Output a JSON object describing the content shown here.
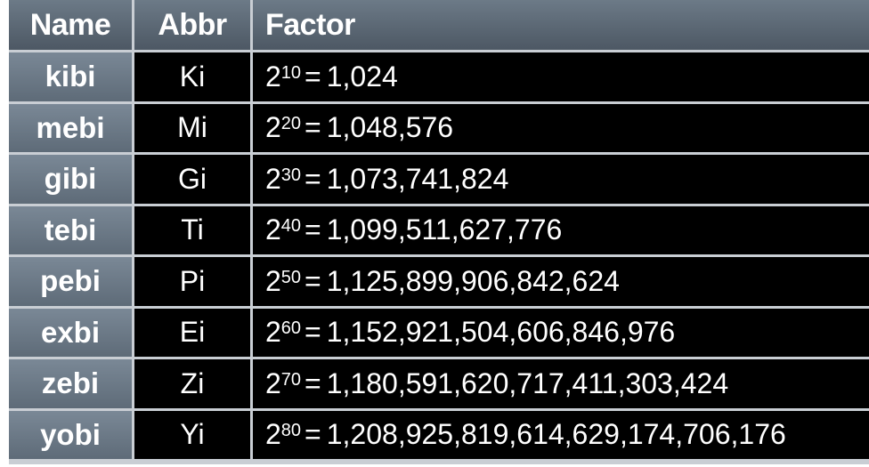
{
  "headers": {
    "name": "Name",
    "abbr": "Abbr",
    "factor": "Factor"
  },
  "rows": [
    {
      "name": "kibi",
      "abbr": "Ki",
      "base": "2",
      "exponent": "10",
      "value": "1,024"
    },
    {
      "name": "mebi",
      "abbr": "Mi",
      "base": "2",
      "exponent": "20",
      "value": "1,048,576"
    },
    {
      "name": "gibi",
      "abbr": "Gi",
      "base": "2",
      "exponent": "30",
      "value": "1,073,741,824"
    },
    {
      "name": "tebi",
      "abbr": "Ti",
      "base": "2",
      "exponent": "40",
      "value": "1,099,511,627,776"
    },
    {
      "name": "pebi",
      "abbr": "Pi",
      "base": "2",
      "exponent": "50",
      "value": "1,125,899,906,842,624"
    },
    {
      "name": "exbi",
      "abbr": "Ei",
      "base": "2",
      "exponent": "60",
      "value": "1,152,921,504,606,846,976"
    },
    {
      "name": "zebi",
      "abbr": "Zi",
      "base": "2",
      "exponent": "70",
      "value": "1,180,591,620,717,411,303,424"
    },
    {
      "name": "yobi",
      "abbr": "Yi",
      "base": "2",
      "exponent": "80",
      "value": "1,208,925,819,614,629,174,706,176"
    }
  ],
  "equals_sign": "=",
  "colors": {
    "header_bg": "#5c6874",
    "name_bg": "#6b7886",
    "data_bg": "#000000",
    "grid": "#c9ced4",
    "text": "#ffffff"
  }
}
